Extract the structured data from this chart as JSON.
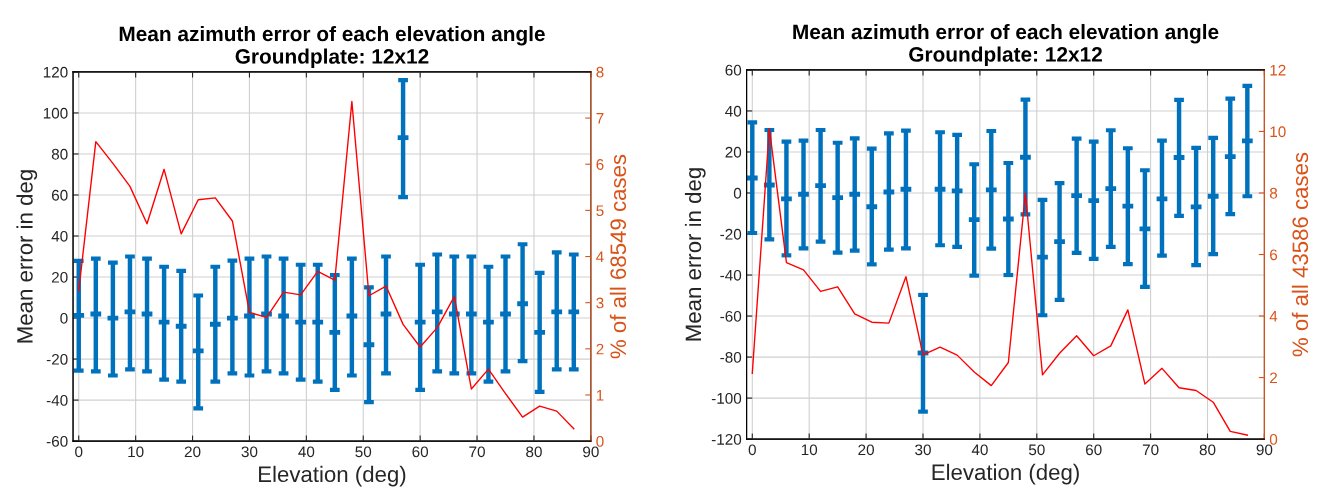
{
  "chart_data": [
    {
      "type": "scatter",
      "title": "Mean azimuth error of each elevation angle",
      "subtitle": "Groundplate: 12x12",
      "xlabel": "Elevation (deg)",
      "ylabel": "Mean error in deg",
      "y2label": "% of all 68549 cases",
      "x": [
        0,
        3,
        6,
        9,
        12,
        15,
        18,
        21,
        24,
        27,
        30,
        33,
        36,
        39,
        42,
        45,
        48,
        51,
        54,
        57,
        60,
        63,
        66,
        69,
        72,
        75,
        78,
        81,
        84,
        87
      ],
      "xlim": [
        -1,
        90
      ],
      "xticks": [
        0,
        10,
        20,
        30,
        40,
        50,
        60,
        70,
        80,
        90
      ],
      "ylim": [
        -60,
        120
      ],
      "yticks": [
        -60,
        -40,
        -20,
        0,
        20,
        40,
        60,
        80,
        100,
        120
      ],
      "y2lim": [
        0,
        8
      ],
      "y2ticks": [
        0,
        1,
        2,
        3,
        4,
        5,
        6,
        7,
        8
      ],
      "grid": true,
      "series": [
        {
          "color": "#0072bd",
          "values": [
            1.3,
            2,
            0,
            3,
            2,
            -2,
            -4,
            -16,
            -3,
            0,
            1,
            2,
            1,
            -2,
            -2,
            -7,
            1,
            -13,
            2,
            88,
            -2,
            3,
            2,
            2,
            -2,
            2,
            7,
            -7,
            3,
            3
          ],
          "errors": [
            [
              -25.6,
              27.9
            ],
            [
              -26,
              29
            ],
            [
              -28,
              27
            ],
            [
              -25,
              30
            ],
            [
              -26,
              29
            ],
            [
              -30,
              25
            ],
            [
              -31,
              23
            ],
            [
              -44,
              11
            ],
            [
              -31,
              25
            ],
            [
              -27,
              28
            ],
            [
              -28,
              29
            ],
            [
              -26,
              30
            ],
            [
              -27,
              29
            ],
            [
              -30,
              26
            ],
            [
              -31,
              26
            ],
            [
              -35,
              21
            ],
            [
              -28,
              29
            ],
            [
              -41,
              15
            ],
            [
              -27,
              30
            ],
            [
              59,
              116
            ],
            [
              -35,
              26
            ],
            [
              -26,
              31
            ],
            [
              -27,
              30
            ],
            [
              -27,
              30
            ],
            [
              -31,
              25
            ],
            [
              -26,
              30
            ],
            [
              -21,
              36
            ],
            [
              -36,
              22
            ],
            [
              -25,
              32
            ],
            [
              -25,
              31
            ]
          ]
        },
        {
          "type": "line",
          "axis": "y2",
          "color": "#ff0000",
          "values": [
            3.26,
            6.49,
            6.02,
            5.52,
            4.71,
            5.89,
            4.49,
            5.23,
            5.27,
            4.77,
            2.79,
            2.68,
            3.23,
            3.17,
            3.68,
            3.49,
            7.36,
            3.15,
            3.36,
            2.53,
            2.04,
            2.46,
            3.13,
            1.13,
            1.56,
            1.03,
            0.52,
            0.76,
            0.65,
            0.27
          ]
        }
      ]
    },
    {
      "type": "scatter",
      "title": "Mean azimuth error of each elevation angle",
      "subtitle": "Groundplate: 12x12",
      "xlabel": "Elevation (deg)",
      "ylabel": "Mean error in deg",
      "y2label": "% of all 43586 cases",
      "x": [
        0,
        3,
        6,
        9,
        12,
        15,
        18,
        21,
        24,
        27,
        30,
        33,
        36,
        39,
        42,
        45,
        48,
        51,
        54,
        57,
        60,
        63,
        66,
        69,
        72,
        75,
        78,
        81,
        84,
        87
      ],
      "xlim": [
        -1,
        90
      ],
      "xticks": [
        0,
        10,
        20,
        30,
        40,
        50,
        60,
        70,
        80,
        90
      ],
      "ylim": [
        -120,
        60
      ],
      "yticks": [
        -120,
        -100,
        -80,
        -60,
        -40,
        -20,
        0,
        20,
        40,
        60
      ],
      "y2lim": [
        0,
        12
      ],
      "y2ticks": [
        0,
        2,
        4,
        6,
        8,
        10,
        12
      ],
      "grid": true,
      "series": [
        {
          "color": "#0072bd",
          "values": [
            7.3,
            3.9,
            -2.9,
            -0.6,
            3.6,
            -2.3,
            -0.6,
            -6.7,
            0.5,
            1.8,
            -78,
            1.8,
            1,
            -13,
            1.5,
            -12.7,
            17.4,
            -31.3,
            -23.7,
            -1.3,
            -3.7,
            2.1,
            -6.4,
            -17.5,
            -2.9,
            17.3,
            -6.8,
            -1.6,
            17.7,
            25.4
          ],
          "errors": [
            [
              -19.5,
              34.4
            ],
            [
              -22.6,
              30.7
            ],
            [
              -30.4,
              25
            ],
            [
              -27,
              25.5
            ],
            [
              -23.7,
              30.7
            ],
            [
              -29.1,
              24.5
            ],
            [
              -28.1,
              26.6
            ],
            [
              -34.8,
              21.6
            ],
            [
              -27.6,
              29.1
            ],
            [
              -27,
              30.4
            ],
            [
              -106.6,
              -49.7
            ],
            [
              -25.5,
              29.6
            ],
            [
              -26.3,
              28.3
            ],
            [
              -40.3,
              14
            ],
            [
              -27.1,
              30.2
            ],
            [
              -40,
              14.6
            ],
            [
              -10.4,
              45.5
            ],
            [
              -59.6,
              -3.4
            ],
            [
              -52.1,
              4.8
            ],
            [
              -29.2,
              26.5
            ],
            [
              -32.1,
              25
            ],
            [
              -26.3,
              30.6
            ],
            [
              -34.7,
              21.8
            ],
            [
              -45.8,
              11.1
            ],
            [
              -30.5,
              25.5
            ],
            [
              -11.2,
              45.4
            ],
            [
              -35.2,
              22
            ],
            [
              -29.8,
              26.9
            ],
            [
              -10.3,
              46
            ],
            [
              -1.6,
              52.2
            ]
          ]
        },
        {
          "type": "line",
          "axis": "y2",
          "color": "#ff0000",
          "values": [
            2.14,
            10.1,
            5.74,
            5.5,
            4.8,
            4.95,
            4.07,
            3.8,
            3.77,
            5.28,
            2.74,
            2.99,
            2.73,
            2.18,
            1.74,
            2.49,
            7.99,
            2.09,
            2.79,
            3.36,
            2.71,
            3.03,
            4.2,
            1.79,
            2.3,
            1.67,
            1.58,
            1.2,
            0.25,
            0.13
          ]
        }
      ]
    }
  ]
}
